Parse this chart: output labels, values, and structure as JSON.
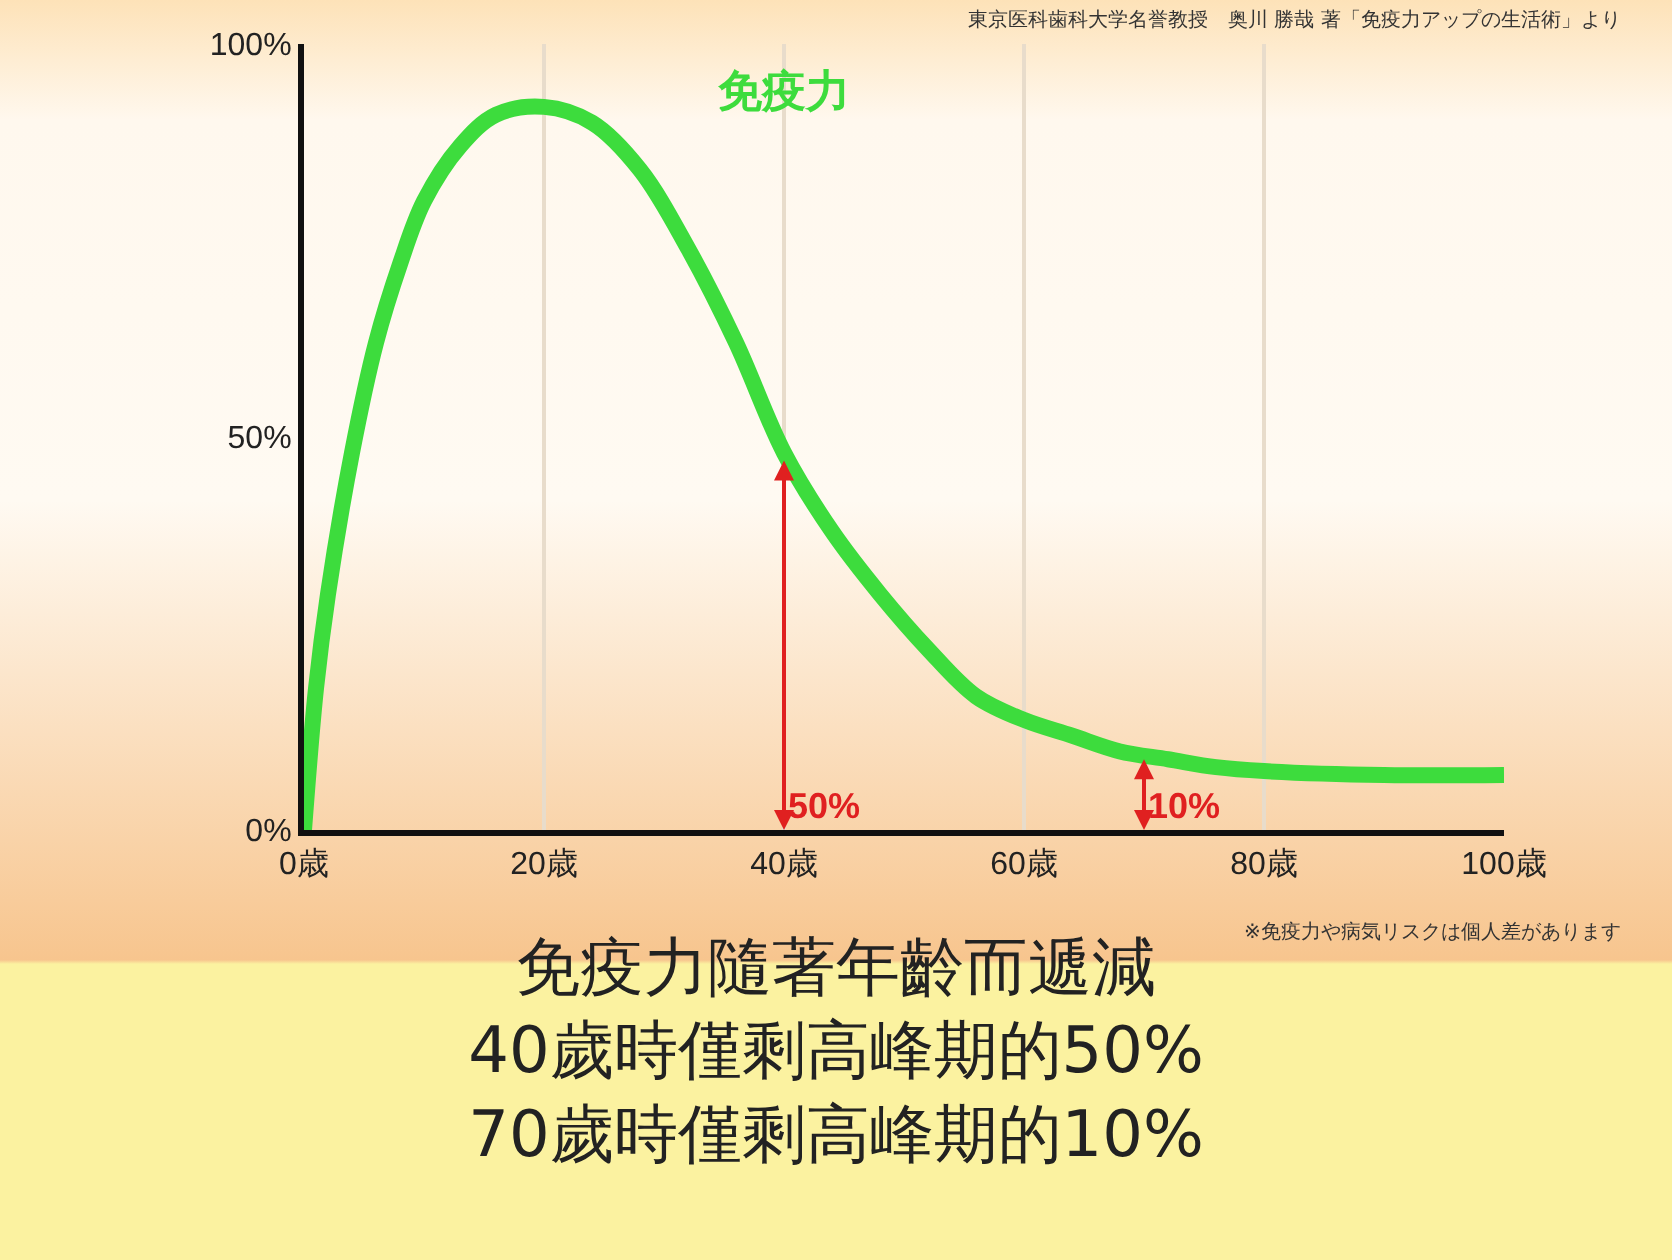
{
  "chart_data": {
    "type": "line",
    "title": "免疫力隨著年齡而遞減\n40歲時僅剩高峰期的50%\n70歲時僅剩高峰期的10%",
    "x": [
      0,
      1,
      2,
      4,
      6,
      8,
      10,
      13,
      16,
      20,
      24,
      28,
      32,
      36,
      40,
      44,
      48,
      52,
      56,
      60,
      64,
      68,
      72,
      76,
      80,
      90,
      100
    ],
    "series": [
      {
        "name": "免疫力",
        "color": "#3ddc3d",
        "values": [
          0,
          18,
          30,
          48,
          62,
          72,
          80,
          87,
          91,
          92,
          90,
          84,
          74,
          62,
          48,
          38,
          30,
          23,
          17,
          14,
          12,
          10,
          9,
          8,
          7.5,
          7,
          7
        ]
      }
    ],
    "xlim": [
      0,
      100
    ],
    "xticks": [
      {
        "value": 0,
        "label": "0歳"
      },
      {
        "value": 20,
        "label": "20歳"
      },
      {
        "value": 40,
        "label": "40歳"
      },
      {
        "value": 60,
        "label": "60歳"
      },
      {
        "value": 80,
        "label": "80歳"
      },
      {
        "value": 100,
        "label": "100歳"
      }
    ],
    "ylim": [
      0,
      100
    ],
    "yticks": [
      {
        "value": 0,
        "label": "0%"
      },
      {
        "value": 50,
        "label": "50%"
      },
      {
        "value": 100,
        "label": "100%"
      }
    ],
    "grid": "x",
    "legend": false,
    "marker": "none",
    "line_style": "solid",
    "annotations": [
      {
        "text": "50%",
        "x": 40,
        "y": 47
      },
      {
        "text": "10%",
        "x": 70,
        "y": 9
      },
      "東京医科歯科大学名誉教授　奥川 勝哉 著「免疫力アップの生活術」より",
      "※免疫力や病気リスクは個人差があります"
    ]
  }
}
